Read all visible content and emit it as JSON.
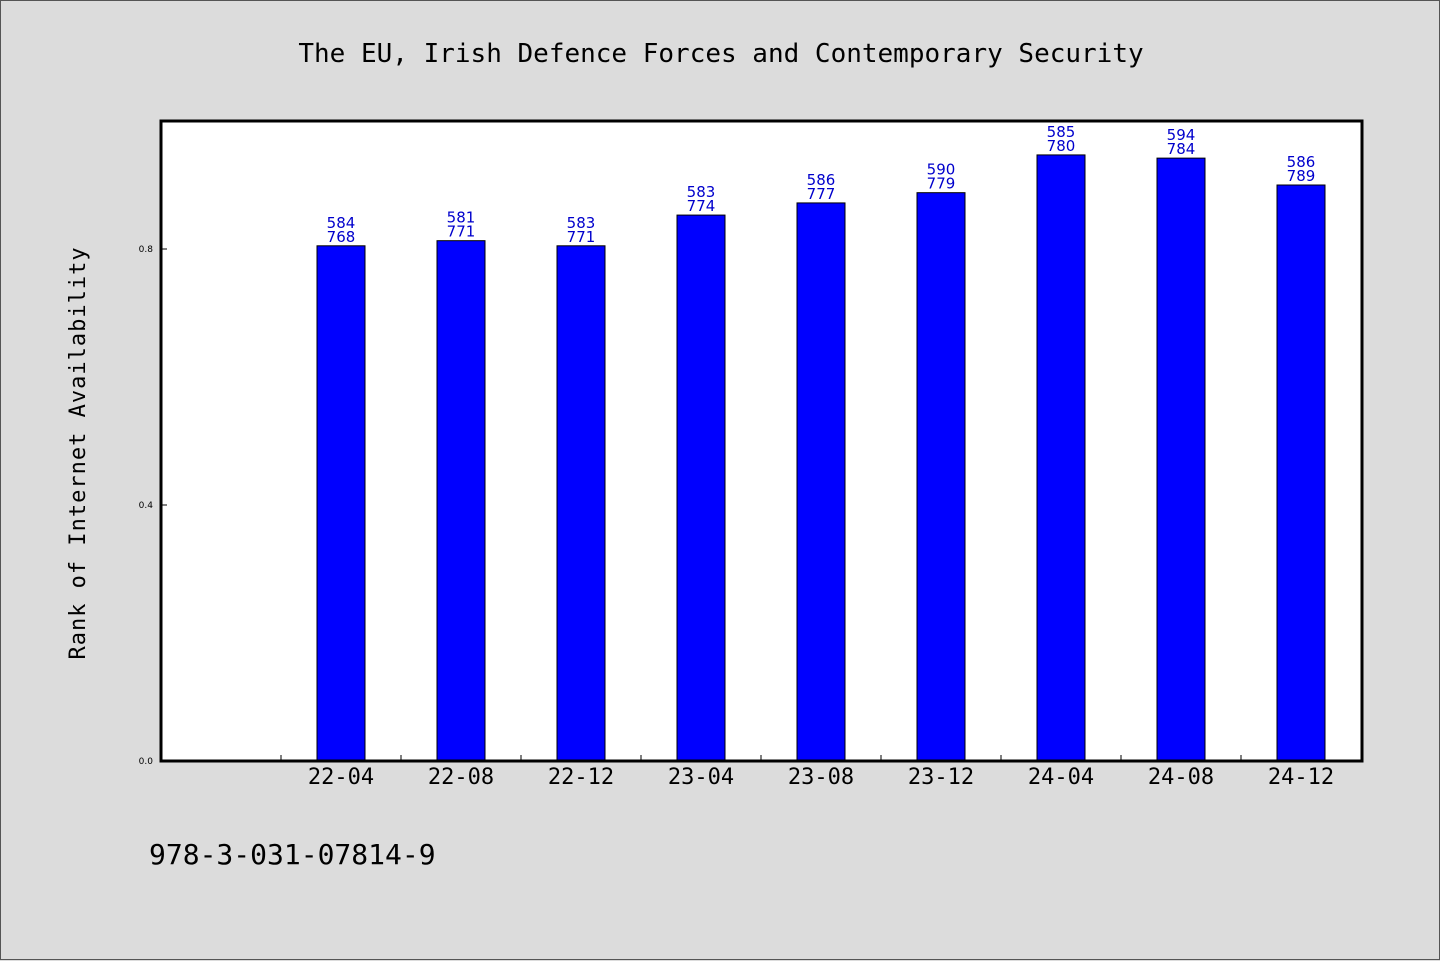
{
  "chart_data": {
    "type": "bar",
    "title": "The EU, Irish Defence Forces and Contemporary Security",
    "xlabel": "",
    "ylabel": "Rank of Internet Availability",
    "categories": [
      "22-04",
      "22-08",
      "22-12",
      "23-04",
      "23-08",
      "23-12",
      "24-04",
      "24-08",
      "24-12"
    ],
    "series": [
      {
        "values": [
          0.805,
          0.813,
          0.805,
          0.853,
          0.872,
          0.888,
          0.947,
          0.942,
          0.9
        ],
        "color": "#0000ff"
      }
    ],
    "data_labels": [
      [
        "584",
        "768"
      ],
      [
        "581",
        "771"
      ],
      [
        "583",
        "771"
      ],
      [
        "583",
        "774"
      ],
      [
        "586",
        "777"
      ],
      [
        "590",
        "779"
      ],
      [
        "585",
        "780"
      ],
      [
        "594",
        "784"
      ],
      [
        "586",
        "789"
      ]
    ],
    "yticks": [
      "0.0",
      "0.4",
      "0.8"
    ],
    "ytick_values": [
      0.0,
      0.4,
      0.8
    ],
    "ylim": [
      0,
      1.0
    ],
    "grid": false,
    "legend": "none"
  },
  "footer": {
    "isbn": "978-3-031-07814-9"
  },
  "colors": {
    "background": "#dcdcdc",
    "plot_background": "#ffffff",
    "bar": "#0000ff",
    "data_label": "#0000cc"
  }
}
